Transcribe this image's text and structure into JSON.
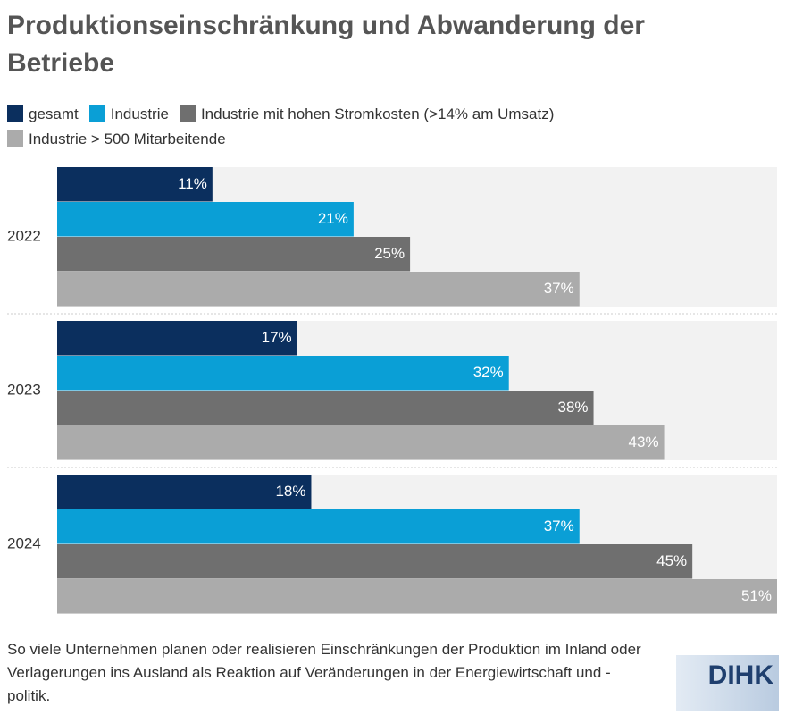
{
  "chart_data": {
    "type": "bar",
    "orientation": "horizontal",
    "title": "Produktionseinschränkung und Abwanderung der Betriebe",
    "categories": [
      "2022",
      "2023",
      "2024"
    ],
    "series": [
      {
        "name": "gesamt",
        "color": "#0b2f5e",
        "values": [
          11,
          17,
          18
        ],
        "value_labels": [
          "11%",
          "17%",
          "18%"
        ]
      },
      {
        "name": "Industrie",
        "color": "#0a9fd6",
        "values": [
          21,
          32,
          37
        ],
        "value_labels": [
          "21%",
          "32%",
          "37%"
        ]
      },
      {
        "name": "Industrie mit hohen Stromkosten (>14% am Umsatz)",
        "color": "#6f6f6f",
        "values": [
          25,
          38,
          45
        ],
        "value_labels": [
          "25%",
          "38%",
          "45%"
        ]
      },
      {
        "name": "Industrie > 500 Mitarbeitende",
        "color": "#ababab",
        "values": [
          37,
          43,
          51
        ],
        "value_labels": [
          "37%",
          "43%",
          "51%"
        ]
      }
    ],
    "caption": "So viele Unternehmen planen oder realisieren Einschränkungen der Produktion im Inland oder Verlagerungen ins Ausland als Reaktion auf Veränderungen in der Energiewirtschaft und -politik.",
    "logo": "DIHK"
  }
}
